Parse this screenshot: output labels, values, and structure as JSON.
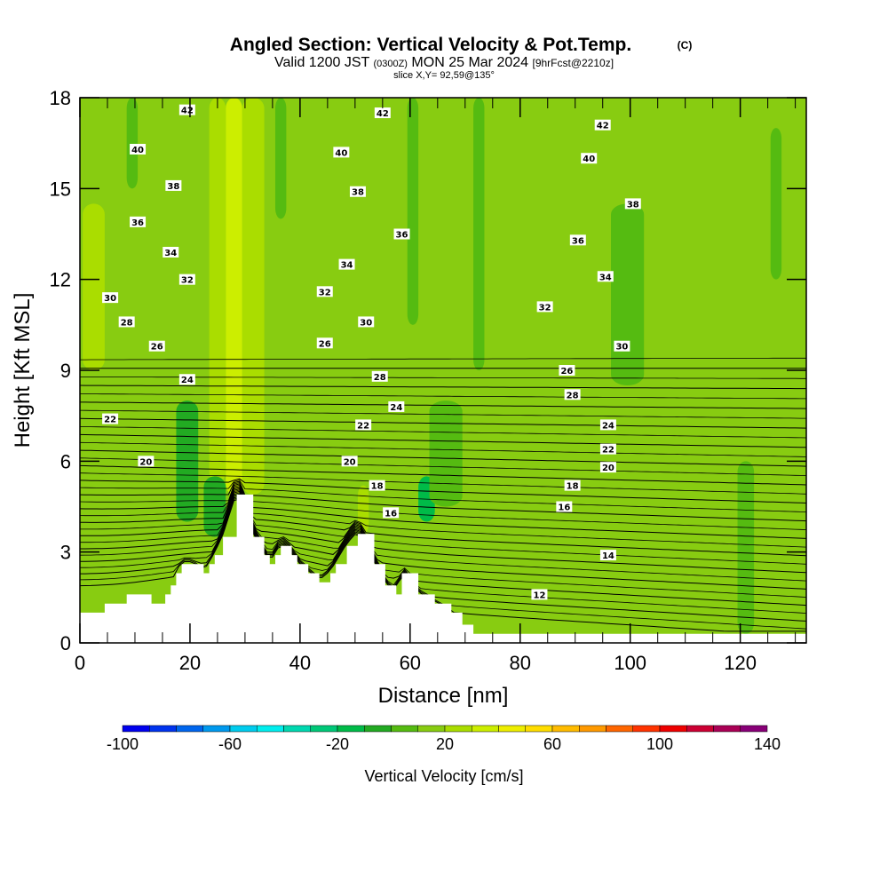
{
  "title": {
    "main": "Angled Section: Vertical Velocity & Pot.Temp.",
    "main_suffix": "(C)",
    "valid_prefix": "Valid 1200 JST",
    "valid_zulu": "(0300Z)",
    "valid_date": "MON 25 Mar 2024",
    "valid_forecast": "[9hrFcst@2210z]",
    "slice": "slice X,Y= 92,59@135°"
  },
  "chart_data": {
    "type": "heatmap",
    "xlabel": "Distance [nm]",
    "ylabel": "Height [Kft MSL]",
    "xlim": [
      0,
      132
    ],
    "ylim": [
      0,
      18
    ],
    "x_ticks": [
      {
        "value": 0,
        "label": "0"
      },
      {
        "value": 20,
        "label": "20"
      },
      {
        "value": 40,
        "label": "40"
      },
      {
        "value": 60,
        "label": "60"
      },
      {
        "value": 80,
        "label": "80"
      },
      {
        "value": 100,
        "label": "100"
      },
      {
        "value": 120,
        "label": "120"
      }
    ],
    "y_ticks": [
      {
        "value": 0,
        "label": "0"
      },
      {
        "value": 3,
        "label": "3"
      },
      {
        "value": 6,
        "label": "6"
      },
      {
        "value": 9,
        "label": "9"
      },
      {
        "value": 12,
        "label": "12"
      },
      {
        "value": 15,
        "label": "15"
      },
      {
        "value": 18,
        "label": "18"
      }
    ],
    "colorbar": {
      "label": "Vertical Velocity [cm/s]",
      "min": -100,
      "max": 140,
      "step": 10,
      "tick_labels": [
        {
          "value": -100,
          "label": "-100"
        },
        {
          "value": -60,
          "label": "-60"
        },
        {
          "value": -20,
          "label": "-20"
        },
        {
          "value": 20,
          "label": "20"
        },
        {
          "value": 60,
          "label": "60"
        },
        {
          "value": 100,
          "label": "100"
        },
        {
          "value": 140,
          "label": "140"
        }
      ],
      "colors": [
        "#0000ee",
        "#0033ee",
        "#0066ee",
        "#0099ee",
        "#00ccee",
        "#00eeee",
        "#00d8b0",
        "#00c878",
        "#00bb48",
        "#22aa22",
        "#55bb11",
        "#88cc11",
        "#aadd00",
        "#ccee00",
        "#eeee00",
        "#ffdd00",
        "#ffbb00",
        "#ff9900",
        "#ff6600",
        "#ff3300",
        "#ee0000",
        "#cc0033",
        "#aa0055",
        "#880077"
      ]
    },
    "velocity_background": {
      "base_value": 12,
      "features": [
        {
          "x_range": [
            26.5,
            29.5
          ],
          "y_range": [
            4.9,
            18
          ],
          "value": 30
        },
        {
          "x_range": [
            29.5,
            33.5
          ],
          "y_range": [
            4.9,
            18
          ],
          "value": 24
        },
        {
          "x_range": [
            23.5,
            26.5
          ],
          "y_range": [
            5.3,
            18
          ],
          "value": 20
        },
        {
          "x_range": [
            0.5,
            4.5
          ],
          "y_range": [
            9,
            14.5
          ],
          "value": 20
        },
        {
          "x_range": [
            50.5,
            52.5
          ],
          "y_range": [
            3.6,
            5.2
          ],
          "value": 24
        },
        {
          "x_range": [
            8.5,
            10.5
          ],
          "y_range": [
            15,
            18
          ],
          "value": 2
        },
        {
          "x_range": [
            17.5,
            21.5
          ],
          "y_range": [
            4,
            8
          ],
          "value": -2
        },
        {
          "x_range": [
            22.5,
            26.5
          ],
          "y_range": [
            3.5,
            5.5
          ],
          "value": -8
        },
        {
          "x_range": [
            61.5,
            64.5
          ],
          "y_range": [
            4,
            5.5
          ],
          "value": -12
        },
        {
          "x_range": [
            63.5,
            69.5
          ],
          "y_range": [
            4.5,
            8
          ],
          "value": 2
        },
        {
          "x_range": [
            96.5,
            102.5
          ],
          "y_range": [
            8.5,
            14.5
          ],
          "value": 2
        },
        {
          "x_range": [
            59.5,
            61.5
          ],
          "y_range": [
            10.5,
            18
          ],
          "value": 2
        },
        {
          "x_range": [
            71.5,
            73.5
          ],
          "y_range": [
            9,
            18
          ],
          "value": 2
        },
        {
          "x_range": [
            119.5,
            122.5
          ],
          "y_range": [
            0.3,
            6
          ],
          "value": 2
        },
        {
          "x_range": [
            125.5,
            127.5
          ],
          "y_range": [
            12,
            17
          ],
          "value": 2
        },
        {
          "x_range": [
            35.5,
            37.5
          ],
          "y_range": [
            14,
            18
          ],
          "value": 2
        }
      ]
    },
    "terrain": [
      {
        "x": 0,
        "height": 1.0
      },
      {
        "x": 4.5,
        "height": 1.3
      },
      {
        "x": 8.5,
        "height": 1.6
      },
      {
        "x": 13,
        "height": 1.3
      },
      {
        "x": 15.5,
        "height": 1.6
      },
      {
        "x": 16.5,
        "height": 1.9
      },
      {
        "x": 17.5,
        "height": 2.3
      },
      {
        "x": 18.5,
        "height": 2.6
      },
      {
        "x": 20.5,
        "height": 2.6
      },
      {
        "x": 22.5,
        "height": 2.3
      },
      {
        "x": 23.5,
        "height": 2.6
      },
      {
        "x": 24.5,
        "height": 2.9
      },
      {
        "x": 26,
        "height": 3.5
      },
      {
        "x": 28.5,
        "height": 4.9
      },
      {
        "x": 31.5,
        "height": 3.5
      },
      {
        "x": 33.5,
        "height": 2.9
      },
      {
        "x": 34.5,
        "height": 2.6
      },
      {
        "x": 35.5,
        "height": 2.9
      },
      {
        "x": 36.5,
        "height": 3.2
      },
      {
        "x": 38.5,
        "height": 2.9
      },
      {
        "x": 39.5,
        "height": 2.6
      },
      {
        "x": 41.5,
        "height": 2.3
      },
      {
        "x": 43.5,
        "height": 2.0
      },
      {
        "x": 45.5,
        "height": 2.3
      },
      {
        "x": 46.5,
        "height": 2.6
      },
      {
        "x": 48.5,
        "height": 3.2
      },
      {
        "x": 50.5,
        "height": 3.6
      },
      {
        "x": 53.5,
        "height": 2.6
      },
      {
        "x": 55.5,
        "height": 1.9
      },
      {
        "x": 57.5,
        "height": 1.6
      },
      {
        "x": 58.5,
        "height": 2.3
      },
      {
        "x": 61.5,
        "height": 1.6
      },
      {
        "x": 64.5,
        "height": 1.3
      },
      {
        "x": 67.5,
        "height": 1.0
      },
      {
        "x": 69.5,
        "height": 0.6
      },
      {
        "x": 71.5,
        "height": 0.3
      },
      {
        "x": 132,
        "height": 0.3
      }
    ],
    "isentrope_levels": [
      12,
      14,
      16,
      18,
      20,
      22,
      24,
      26,
      28,
      30,
      32,
      34,
      36,
      38,
      40,
      42
    ],
    "isentrope_labels": [
      {
        "text": "42",
        "x": 19.5,
        "y": 17.6
      },
      {
        "text": "42",
        "x": 55.0,
        "y": 17.5
      },
      {
        "text": "42",
        "x": 95.0,
        "y": 17.1
      },
      {
        "text": "40",
        "x": 10.5,
        "y": 16.3
      },
      {
        "text": "40",
        "x": 47.5,
        "y": 16.2
      },
      {
        "text": "40",
        "x": 92.5,
        "y": 16.0
      },
      {
        "text": "38",
        "x": 17.0,
        "y": 15.1
      },
      {
        "text": "38",
        "x": 50.5,
        "y": 14.9
      },
      {
        "text": "38",
        "x": 100.5,
        "y": 14.5
      },
      {
        "text": "36",
        "x": 10.5,
        "y": 13.9
      },
      {
        "text": "36",
        "x": 58.5,
        "y": 13.5
      },
      {
        "text": "36",
        "x": 90.5,
        "y": 13.3
      },
      {
        "text": "34",
        "x": 16.5,
        "y": 12.9
      },
      {
        "text": "34",
        "x": 48.5,
        "y": 12.5
      },
      {
        "text": "34",
        "x": 95.5,
        "y": 12.1
      },
      {
        "text": "32",
        "x": 19.5,
        "y": 12.0
      },
      {
        "text": "32",
        "x": 44.5,
        "y": 11.6
      },
      {
        "text": "32",
        "x": 84.5,
        "y": 11.1
      },
      {
        "text": "30",
        "x": 5.5,
        "y": 11.4
      },
      {
        "text": "30",
        "x": 52.0,
        "y": 10.6
      },
      {
        "text": "30",
        "x": 98.5,
        "y": 9.8
      },
      {
        "text": "28",
        "x": 8.5,
        "y": 10.6
      },
      {
        "text": "28",
        "x": 54.5,
        "y": 8.8
      },
      {
        "text": "28",
        "x": 89.5,
        "y": 8.2
      },
      {
        "text": "26",
        "x": 14.0,
        "y": 9.8
      },
      {
        "text": "26",
        "x": 44.5,
        "y": 9.9
      },
      {
        "text": "26",
        "x": 88.5,
        "y": 9.0
      },
      {
        "text": "24",
        "x": 19.5,
        "y": 8.7
      },
      {
        "text": "24",
        "x": 57.5,
        "y": 7.8
      },
      {
        "text": "24",
        "x": 96.0,
        "y": 7.2
      },
      {
        "text": "22",
        "x": 5.5,
        "y": 7.4
      },
      {
        "text": "22",
        "x": 51.5,
        "y": 7.2
      },
      {
        "text": "22",
        "x": 96.0,
        "y": 6.4
      },
      {
        "text": "20",
        "x": 12.0,
        "y": 6.0
      },
      {
        "text": "20",
        "x": 49.0,
        "y": 6.0
      },
      {
        "text": "20",
        "x": 96.0,
        "y": 5.8
      },
      {
        "text": "18",
        "x": 54.0,
        "y": 5.2
      },
      {
        "text": "18",
        "x": 89.5,
        "y": 5.2
      },
      {
        "text": "16",
        "x": 56.5,
        "y": 4.3
      },
      {
        "text": "16",
        "x": 88.0,
        "y": 4.5
      },
      {
        "text": "14",
        "x": 96.0,
        "y": 2.9
      },
      {
        "text": "12",
        "x": 83.5,
        "y": 1.6
      }
    ]
  }
}
